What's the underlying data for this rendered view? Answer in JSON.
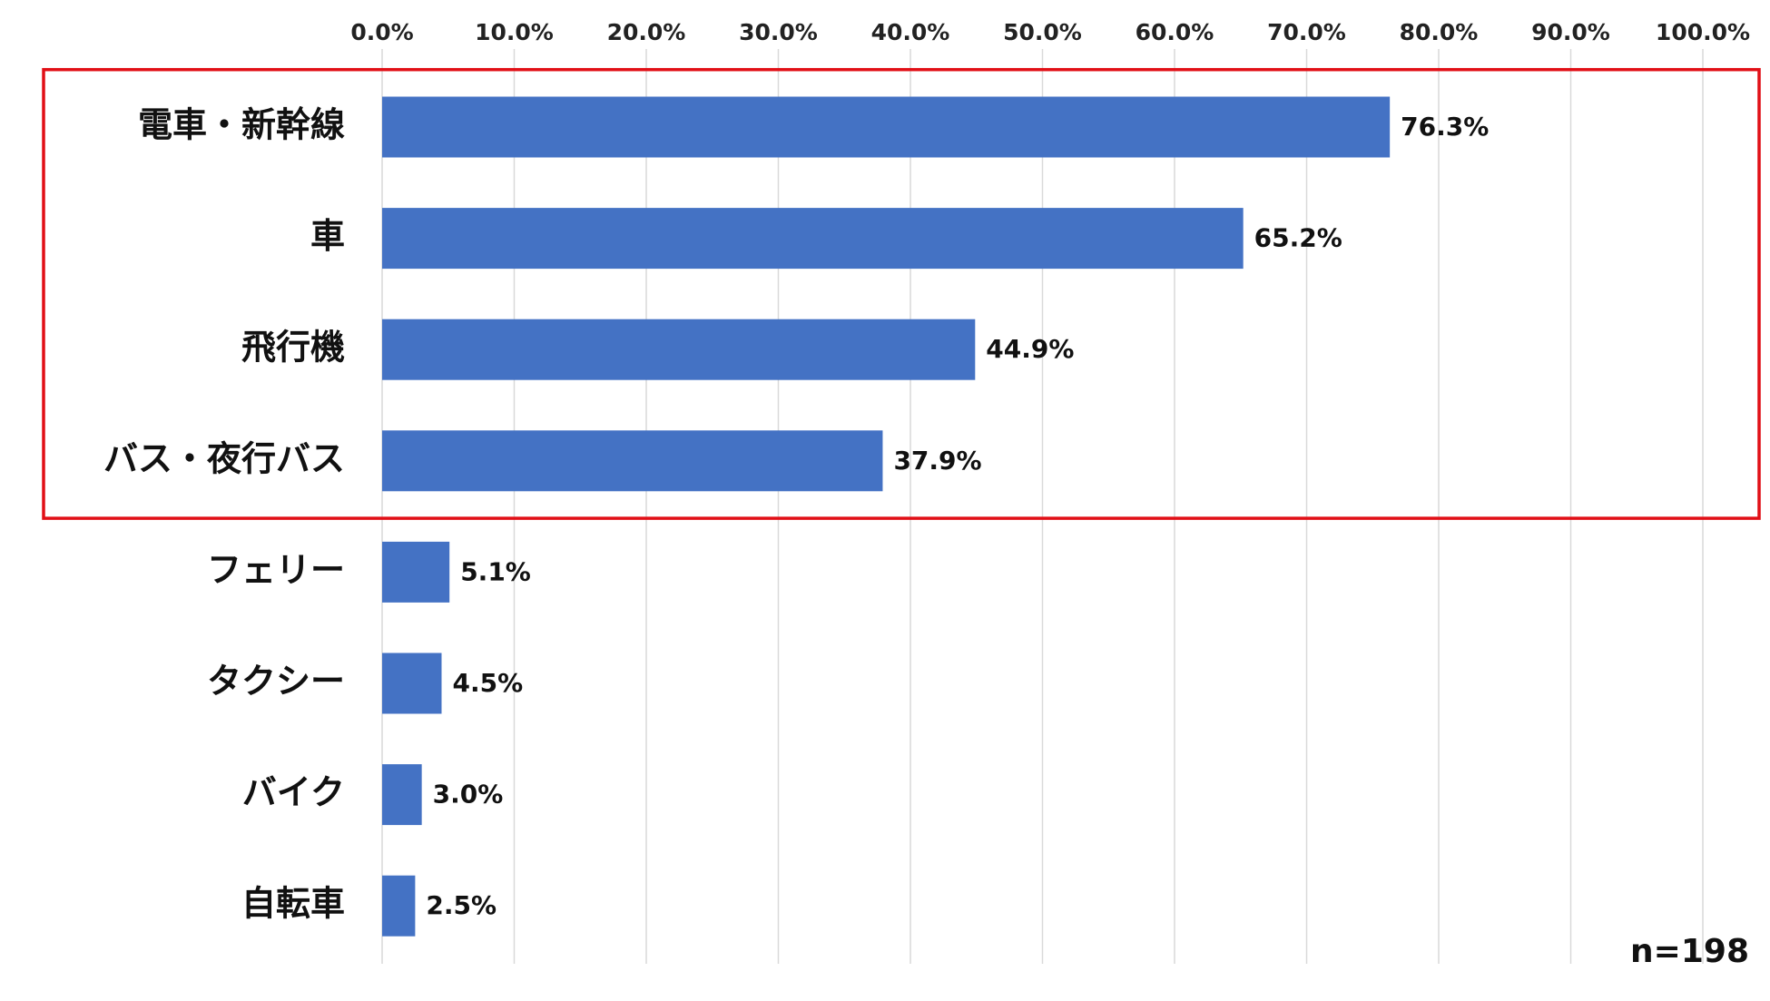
{
  "chart_data": {
    "type": "bar",
    "orientation": "horizontal",
    "categories": [
      "電車・新幹線",
      "車",
      "飛行機",
      "バス・夜行バス",
      "フェリー",
      "タクシー",
      "バイク",
      "自転車"
    ],
    "values": [
      76.3,
      65.2,
      44.9,
      37.9,
      5.1,
      4.5,
      3.0,
      2.5
    ],
    "value_labels": [
      "76.3%",
      "65.2%",
      "44.9%",
      "37.9%",
      "5.1%",
      "4.5%",
      "3.0%",
      "2.5%"
    ],
    "xlim": [
      0,
      100
    ],
    "x_ticks": [
      "0.0%",
      "10.0%",
      "20.0%",
      "30.0%",
      "40.0%",
      "50.0%",
      "60.0%",
      "70.0%",
      "80.0%",
      "90.0%",
      "100.0%"
    ],
    "x_axis_position": "top",
    "grid": true,
    "highlight": {
      "categories": [
        "電車・新幹線",
        "車",
        "飛行機",
        "バス・夜行バス"
      ],
      "color": "#e10f16"
    },
    "note": "n=198",
    "colors": {
      "bar": "#4472c4",
      "grid": "#d9d9d9"
    }
  }
}
